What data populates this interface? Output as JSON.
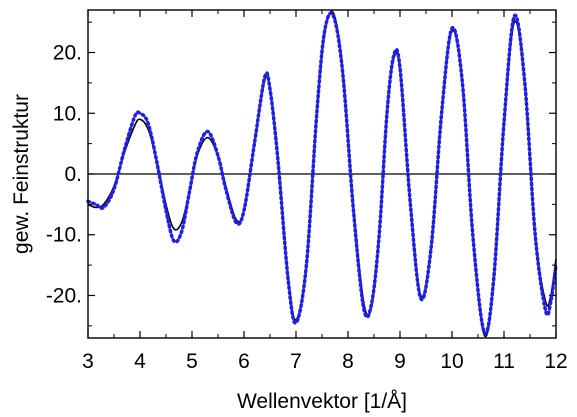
{
  "chart_data": {
    "type": "line",
    "title": "",
    "xlabel": "Wellenvektor [1/Å]",
    "ylabel": "gew. Feinstruktur",
    "xlim": [
      3,
      12
    ],
    "ylim": [
      -27,
      27
    ],
    "xticks": [
      3,
      4,
      5,
      6,
      7,
      8,
      9,
      10,
      11,
      12
    ],
    "xtick_labels": [
      "3",
      "4",
      "5",
      "6",
      "7",
      "8",
      "9",
      "10",
      "11",
      "12"
    ],
    "yticks": [
      -20,
      -10,
      0,
      10,
      20
    ],
    "ytick_labels": [
      "-20.",
      "-10.",
      "0.",
      "10.",
      "20."
    ],
    "zero_line": true,
    "grid": false,
    "legend": "none",
    "series": [
      {
        "style": "solid",
        "color": "#000000",
        "x": [
          3.0,
          3.15,
          3.3,
          3.5,
          3.7,
          3.9,
          4.0,
          4.15,
          4.3,
          4.5,
          4.65,
          4.8,
          4.95,
          5.1,
          5.3,
          5.5,
          5.65,
          5.85,
          6.0,
          6.2,
          6.4,
          6.5,
          6.65,
          6.85,
          7.0,
          7.2,
          7.4,
          7.55,
          7.72,
          7.9,
          8.1,
          8.3,
          8.45,
          8.6,
          8.75,
          8.88,
          9.0,
          9.2,
          9.4,
          9.6,
          9.8,
          10.0,
          10.2,
          10.4,
          10.62,
          10.8,
          11.0,
          11.2,
          11.4,
          11.6,
          11.8,
          11.9,
          12.0
        ],
        "y": [
          -5.0,
          -5.5,
          -5.0,
          -2.0,
          3.5,
          8.0,
          9.0,
          7.5,
          3.0,
          -5.0,
          -9.0,
          -8.0,
          -3.0,
          3.0,
          6.0,
          3.0,
          -2.0,
          -7.5,
          -6.0,
          5.0,
          15.5,
          14.0,
          3.0,
          -17.0,
          -24.0,
          -15.0,
          10.0,
          23.0,
          26.5,
          17.0,
          -5.0,
          -21.0,
          -22.0,
          -10.0,
          10.0,
          19.0,
          17.0,
          -5.0,
          -20.0,
          -12.0,
          10.0,
          23.5,
          15.0,
          -10.0,
          -26.5,
          -18.0,
          8.0,
          25.0,
          15.0,
          -10.0,
          -21.0,
          -20.0,
          -14.0
        ]
      },
      {
        "style": "dotted",
        "color": "#1f1fe6",
        "x": [
          3.0,
          3.15,
          3.3,
          3.5,
          3.7,
          3.9,
          4.0,
          4.15,
          4.3,
          4.5,
          4.65,
          4.8,
          4.95,
          5.1,
          5.3,
          5.5,
          5.65,
          5.85,
          6.0,
          6.2,
          6.4,
          6.5,
          6.65,
          6.85,
          7.0,
          7.2,
          7.4,
          7.55,
          7.72,
          7.9,
          8.1,
          8.3,
          8.45,
          8.6,
          8.75,
          8.88,
          9.0,
          9.2,
          9.4,
          9.6,
          9.8,
          10.0,
          10.2,
          10.4,
          10.62,
          10.8,
          11.0,
          11.2,
          11.4,
          11.6,
          11.8,
          11.9,
          12.0
        ],
        "y": [
          -4.5,
          -5.0,
          -5.5,
          -2.5,
          4.0,
          9.5,
          10.0,
          8.5,
          3.0,
          -6.0,
          -11.0,
          -9.5,
          -3.0,
          3.5,
          7.0,
          3.0,
          -2.5,
          -8.0,
          -6.0,
          5.0,
          16.0,
          14.0,
          2.5,
          -17.5,
          -24.5,
          -15.0,
          10.0,
          23.5,
          26.0,
          16.5,
          -5.5,
          -22.0,
          -21.5,
          -10.0,
          10.0,
          19.5,
          17.5,
          -5.0,
          -20.5,
          -12.0,
          10.0,
          24.0,
          15.0,
          -10.0,
          -26.0,
          -17.5,
          8.5,
          26.0,
          15.0,
          -10.0,
          -22.5,
          -21.0,
          -15.0
        ]
      }
    ]
  }
}
